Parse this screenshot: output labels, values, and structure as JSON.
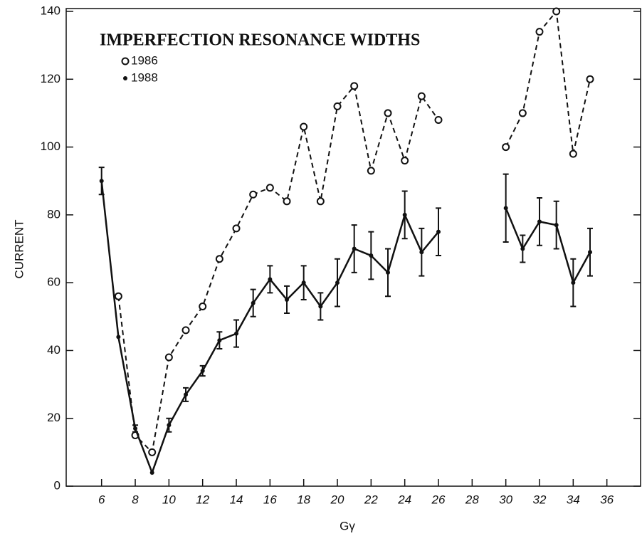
{
  "chart_data": {
    "type": "line",
    "title": "IMPERFECTION RESONANCE WIDTHS",
    "xlabel": "Gγ",
    "ylabel": "CURRENT",
    "x": [
      6,
      7,
      8,
      9,
      10,
      11,
      12,
      13,
      14,
      15,
      16,
      17,
      18,
      19,
      20,
      21,
      22,
      23,
      24,
      25,
      26,
      28,
      30,
      31,
      32,
      33,
      34,
      35
    ],
    "series": [
      {
        "name": "1986",
        "color": "#111111",
        "dash": true,
        "marker": "circle",
        "values": [
          null,
          56,
          15,
          10,
          38,
          46,
          53,
          67,
          76,
          86,
          88,
          84,
          106,
          84,
          112,
          118,
          93,
          110,
          96,
          115,
          108,
          null,
          100,
          110,
          134,
          140,
          98,
          120
        ]
      },
      {
        "name": "1988",
        "color": "#111111",
        "dash": false,
        "marker": "dot",
        "values": [
          90,
          44,
          17,
          4,
          18,
          27,
          34,
          43,
          45,
          54,
          61,
          55,
          60,
          53,
          60,
          70,
          68,
          63,
          80,
          69,
          75,
          null,
          82,
          70,
          78,
          77,
          60,
          69
        ],
        "errors": [
          4,
          0,
          1,
          0,
          2,
          2,
          1.5,
          2.5,
          4,
          4,
          4,
          4,
          5,
          4,
          7,
          7,
          7,
          7,
          7,
          7,
          7,
          null,
          10,
          4,
          7,
          7,
          7,
          7
        ]
      }
    ],
    "xlim": [
      3.9,
      38
    ],
    "ylim": [
      0,
      140
    ],
    "xticks": [
      6,
      8,
      10,
      12,
      14,
      16,
      18,
      20,
      22,
      24,
      26,
      28,
      30,
      32,
      34,
      36
    ],
    "yticks": [
      0,
      20,
      40,
      60,
      80,
      100,
      120,
      140
    ],
    "grid": false
  }
}
